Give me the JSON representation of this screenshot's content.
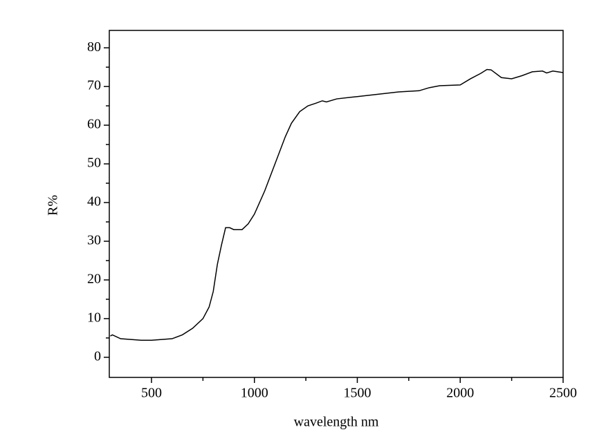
{
  "chart_data": {
    "type": "line",
    "xlabel": "wavelength nm",
    "ylabel": "R%",
    "x": [
      300,
      310,
      350,
      400,
      450,
      500,
      550,
      600,
      650,
      700,
      750,
      780,
      800,
      820,
      840,
      860,
      880,
      900,
      940,
      970,
      1000,
      1050,
      1100,
      1150,
      1180,
      1220,
      1260,
      1300,
      1330,
      1350,
      1400,
      1500,
      1600,
      1700,
      1800,
      1850,
      1900,
      2000,
      2050,
      2100,
      2130,
      2150,
      2200,
      2250,
      2300,
      2350,
      2400,
      2420,
      2450,
      2500
    ],
    "series": [
      {
        "color": "#000000",
        "values": [
          5.5,
          5.8,
          4.8,
          4.6,
          4.4,
          4.4,
          4.6,
          4.8,
          5.8,
          7.5,
          10,
          13,
          17,
          24,
          29,
          33.5,
          33.5,
          33,
          33,
          34.5,
          37,
          43,
          50,
          57,
          60.5,
          63.5,
          65,
          65.7,
          66.3,
          66,
          66.8,
          67.4,
          68,
          68.6,
          68.9,
          69.7,
          70.2,
          70.4,
          72,
          73.4,
          74.4,
          74.3,
          72.3,
          72,
          72.8,
          73.8,
          74,
          73.5,
          74,
          73.6
        ]
      }
    ],
    "xlim": [
      295,
      2500
    ],
    "xticks": [
      500,
      1000,
      1500,
      2000,
      2500
    ],
    "xminorticks": [
      750,
      1250,
      1750,
      2250
    ],
    "ylim": [
      -5.2,
      84.5
    ],
    "yticks": [
      0,
      10,
      20,
      30,
      40,
      50,
      60,
      70,
      80
    ],
    "yminorticks": [
      5,
      15,
      25,
      35,
      45,
      55,
      65,
      75
    ]
  }
}
